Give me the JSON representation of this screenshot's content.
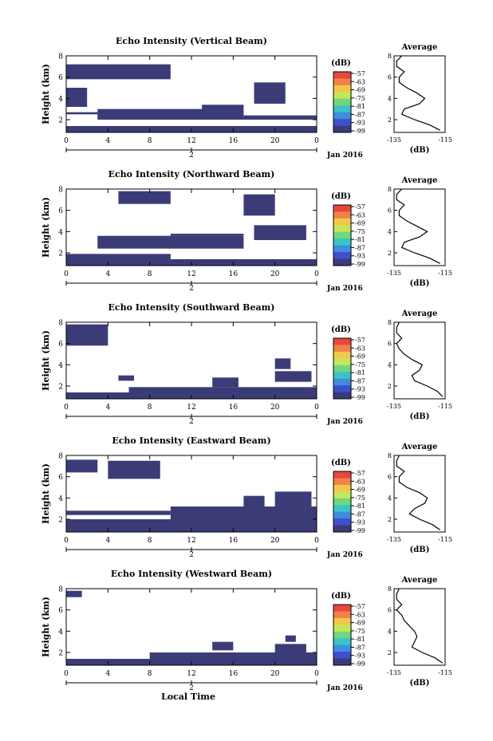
{
  "chart_data": [
    {
      "type": "heatmap",
      "title": "Echo Intensity (Vertical Beam)",
      "ylabel": "Height (km)",
      "x_ticks": [
        "0",
        "4",
        "8",
        "12",
        "16",
        "20",
        "0"
      ],
      "date_ticks": [
        "",
        "2",
        ""
      ],
      "date_label": "Jan 2016",
      "ylim": [
        0.8,
        8
      ],
      "yticks": [
        2,
        4,
        6,
        8
      ],
      "colorbar": {
        "label": "(dB)",
        "ticks": [
          "-57",
          "-63",
          "-69",
          "-75",
          "-81",
          "-87",
          "-93",
          "-99"
        ]
      },
      "echo_blocks": [
        {
          "x": [
            0,
            24
          ],
          "y": [
            0.8,
            1.4
          ]
        },
        {
          "x": [
            0,
            5
          ],
          "y": [
            2.5,
            2.7
          ]
        },
        {
          "x": [
            3,
            16
          ],
          "y": [
            2.0,
            3.0
          ]
        },
        {
          "x": [
            13,
            17
          ],
          "y": [
            2.0,
            3.4
          ]
        },
        {
          "x": [
            17,
            24
          ],
          "y": [
            2.0,
            2.4
          ]
        },
        {
          "x": [
            0,
            10
          ],
          "y": [
            5.8,
            7.2
          ]
        },
        {
          "x": [
            18,
            21
          ],
          "y": [
            3.5,
            5.5
          ]
        },
        {
          "x": [
            0,
            2
          ],
          "y": [
            3.2,
            5.0
          ]
        }
      ],
      "avg_panel": {
        "title": "Average",
        "xlabel": "(dB)",
        "x_ticks": [
          "-135",
          "-115"
        ],
        "y_ticks": [
          2,
          4,
          6,
          8
        ]
      },
      "avg_profile": [
        [
          -117,
          1
        ],
        [
          -121,
          1.5
        ],
        [
          -127,
          2
        ],
        [
          -132,
          2.5
        ],
        [
          -131,
          3
        ],
        [
          -125,
          3.5
        ],
        [
          -123,
          4
        ],
        [
          -126,
          4.5
        ],
        [
          -130,
          5
        ],
        [
          -133,
          5.5
        ],
        [
          -133,
          6
        ],
        [
          -131,
          6.5
        ],
        [
          -134,
          7
        ],
        [
          -134,
          7.5
        ],
        [
          -132,
          8
        ]
      ]
    },
    {
      "type": "heatmap",
      "title": "Echo Intensity (Northward Beam)",
      "ylabel": "Height (km)",
      "x_ticks": [
        "0",
        "4",
        "8",
        "12",
        "16",
        "20",
        "0"
      ],
      "date_ticks": [
        "",
        "2",
        ""
      ],
      "date_label": "Jan 2016",
      "ylim": [
        0.8,
        8
      ],
      "yticks": [
        2,
        4,
        6,
        8
      ],
      "colorbar": {
        "label": "(dB)",
        "ticks": [
          "-57",
          "-63",
          "-69",
          "-75",
          "-81",
          "-87",
          "-93",
          "-99"
        ]
      },
      "echo_blocks": [
        {
          "x": [
            0,
            24
          ],
          "y": [
            0.8,
            1.4
          ]
        },
        {
          "x": [
            0,
            10
          ],
          "y": [
            1.4,
            1.9
          ]
        },
        {
          "x": [
            3,
            17
          ],
          "y": [
            2.4,
            3.6
          ]
        },
        {
          "x": [
            10,
            17
          ],
          "y": [
            3.6,
            3.8
          ]
        },
        {
          "x": [
            5,
            10
          ],
          "y": [
            6.6,
            7.8
          ]
        },
        {
          "x": [
            18,
            23
          ],
          "y": [
            3.2,
            4.6
          ]
        },
        {
          "x": [
            17,
            20
          ],
          "y": [
            5.5,
            7.5
          ]
        }
      ],
      "avg_panel": {
        "title": "Average",
        "xlabel": "(dB)",
        "x_ticks": [
          "-135",
          "-115"
        ],
        "y_ticks": [
          2,
          4,
          6,
          8
        ]
      },
      "avg_profile": [
        [
          -117,
          1
        ],
        [
          -121,
          1.5
        ],
        [
          -127,
          2
        ],
        [
          -132,
          2.5
        ],
        [
          -131,
          3
        ],
        [
          -125,
          3.5
        ],
        [
          -122,
          4
        ],
        [
          -126,
          4.5
        ],
        [
          -130,
          5
        ],
        [
          -133,
          5.5
        ],
        [
          -133,
          6
        ],
        [
          -131,
          6.5
        ],
        [
          -134,
          7
        ],
        [
          -134,
          7.5
        ],
        [
          -132,
          8
        ]
      ]
    },
    {
      "type": "heatmap",
      "title": "Echo Intensity (Southward Beam)",
      "ylabel": "Height (km)",
      "x_ticks": [
        "0",
        "4",
        "8",
        "12",
        "16",
        "20",
        "0"
      ],
      "date_ticks": [
        "",
        "2",
        ""
      ],
      "date_label": "Jan 2016",
      "ylim": [
        0.8,
        8
      ],
      "yticks": [
        2,
        4,
        6,
        8
      ],
      "colorbar": {
        "label": "(dB)",
        "ticks": [
          "-57",
          "-63",
          "-69",
          "-75",
          "-81",
          "-87",
          "-93",
          "-99"
        ]
      },
      "echo_blocks": [
        {
          "x": [
            0,
            24
          ],
          "y": [
            0.8,
            1.4
          ]
        },
        {
          "x": [
            6,
            24
          ],
          "y": [
            1.4,
            1.9
          ]
        },
        {
          "x": [
            14,
            16.5
          ],
          "y": [
            1.9,
            2.8
          ]
        },
        {
          "x": [
            5,
            6.5
          ],
          "y": [
            2.5,
            3.0
          ]
        },
        {
          "x": [
            20,
            23.5
          ],
          "y": [
            2.4,
            3.4
          ]
        },
        {
          "x": [
            0,
            4
          ],
          "y": [
            5.8,
            7.8
          ]
        },
        {
          "x": [
            20,
            21.5
          ],
          "y": [
            3.6,
            4.6
          ]
        }
      ],
      "avg_panel": {
        "title": "Average",
        "xlabel": "(dB)",
        "x_ticks": [
          "-135",
          "-115"
        ],
        "y_ticks": [
          2,
          4,
          6,
          8
        ]
      },
      "avg_profile": [
        [
          -116,
          1
        ],
        [
          -118,
          1.5
        ],
        [
          -122,
          2
        ],
        [
          -127,
          2.5
        ],
        [
          -128,
          3
        ],
        [
          -125,
          3.5
        ],
        [
          -124,
          4
        ],
        [
          -128,
          4.5
        ],
        [
          -131,
          5
        ],
        [
          -133,
          5.5
        ],
        [
          -134,
          6
        ],
        [
          -132,
          6.5
        ],
        [
          -134,
          7
        ],
        [
          -134,
          7.5
        ],
        [
          -133,
          8
        ]
      ]
    },
    {
      "type": "heatmap",
      "title": "Echo Intensity (Eastward Beam)",
      "ylabel": "Height (km)",
      "x_ticks": [
        "0",
        "4",
        "8",
        "12",
        "16",
        "20",
        "0"
      ],
      "date_ticks": [
        "",
        "2",
        ""
      ],
      "date_label": "Jan 2016",
      "ylim": [
        0.8,
        8
      ],
      "yticks": [
        2,
        4,
        6,
        8
      ],
      "colorbar": {
        "label": "(dB)",
        "ticks": [
          "-57",
          "-63",
          "-69",
          "-75",
          "-81",
          "-87",
          "-93",
          "-99"
        ]
      },
      "echo_blocks": [
        {
          "x": [
            0,
            24
          ],
          "y": [
            0.8,
            1.4
          ]
        },
        {
          "x": [
            0,
            24
          ],
          "y": [
            1.4,
            2.0
          ]
        },
        {
          "x": [
            10,
            24
          ],
          "y": [
            2.0,
            3.2
          ]
        },
        {
          "x": [
            0,
            10
          ],
          "y": [
            2.4,
            2.8
          ]
        },
        {
          "x": [
            4,
            9
          ],
          "y": [
            5.8,
            7.5
          ]
        },
        {
          "x": [
            0,
            3
          ],
          "y": [
            6.4,
            7.6
          ]
        },
        {
          "x": [
            20,
            23.5
          ],
          "y": [
            3.0,
            4.6
          ]
        },
        {
          "x": [
            17,
            19
          ],
          "y": [
            3.2,
            4.2
          ]
        }
      ],
      "avg_panel": {
        "title": "Average",
        "xlabel": "(dB)",
        "x_ticks": [
          "-135",
          "-115"
        ],
        "y_ticks": [
          2,
          4,
          6,
          8
        ]
      },
      "avg_profile": [
        [
          -117,
          1
        ],
        [
          -120,
          1.5
        ],
        [
          -125,
          2
        ],
        [
          -129,
          2.5
        ],
        [
          -127,
          3
        ],
        [
          -123,
          3.5
        ],
        [
          -122,
          4
        ],
        [
          -125,
          4.5
        ],
        [
          -130,
          5
        ],
        [
          -133,
          5.5
        ],
        [
          -133,
          6
        ],
        [
          -131,
          6.5
        ],
        [
          -134,
          7
        ],
        [
          -134,
          7.5
        ],
        [
          -133,
          8
        ]
      ]
    },
    {
      "type": "heatmap",
      "title": "Echo Intensity (Westward Beam)",
      "ylabel": "Height (km)",
      "x_ticks": [
        "0",
        "4",
        "8",
        "12",
        "16",
        "20",
        "0"
      ],
      "date_ticks": [
        "",
        "2",
        ""
      ],
      "date_label": "Jan 2016",
      "xlabel": "Local Time",
      "ylim": [
        0.8,
        8
      ],
      "yticks": [
        2,
        4,
        6,
        8
      ],
      "colorbar": {
        "label": "(dB)",
        "ticks": [
          "-57",
          "-63",
          "-69",
          "-75",
          "-81",
          "-87",
          "-93",
          "-99"
        ]
      },
      "echo_blocks": [
        {
          "x": [
            0,
            24
          ],
          "y": [
            0.8,
            1.4
          ]
        },
        {
          "x": [
            8,
            24
          ],
          "y": [
            1.4,
            2.0
          ]
        },
        {
          "x": [
            14,
            16
          ],
          "y": [
            2.2,
            3.0
          ]
        },
        {
          "x": [
            20,
            23
          ],
          "y": [
            2.0,
            2.8
          ]
        },
        {
          "x": [
            0,
            1.5
          ],
          "y": [
            7.2,
            7.8
          ]
        },
        {
          "x": [
            21,
            22
          ],
          "y": [
            3.0,
            3.6
          ]
        }
      ],
      "avg_panel": {
        "title": "Average",
        "xlabel": "(dB)",
        "x_ticks": [
          "-135",
          "-115"
        ],
        "y_ticks": [
          2,
          4,
          6,
          8
        ]
      },
      "avg_profile": [
        [
          -116,
          1
        ],
        [
          -119,
          1.5
        ],
        [
          -124,
          2
        ],
        [
          -128,
          2.5
        ],
        [
          -127,
          3
        ],
        [
          -126,
          3.5
        ],
        [
          -127,
          4
        ],
        [
          -129,
          4.5
        ],
        [
          -131,
          5
        ],
        [
          -132,
          5.5
        ],
        [
          -134,
          6
        ],
        [
          -132,
          6.5
        ],
        [
          -134,
          7
        ],
        [
          -134,
          7.5
        ],
        [
          -133,
          8
        ]
      ]
    }
  ],
  "colors": {
    "echo": "#3b3c77",
    "colorbar": [
      "#e8473d",
      "#f0824a",
      "#f2c84b",
      "#c7e55b",
      "#6fd77d",
      "#3bc3c9",
      "#3f8ede",
      "#3f4fd0",
      "#3b3c77"
    ]
  }
}
